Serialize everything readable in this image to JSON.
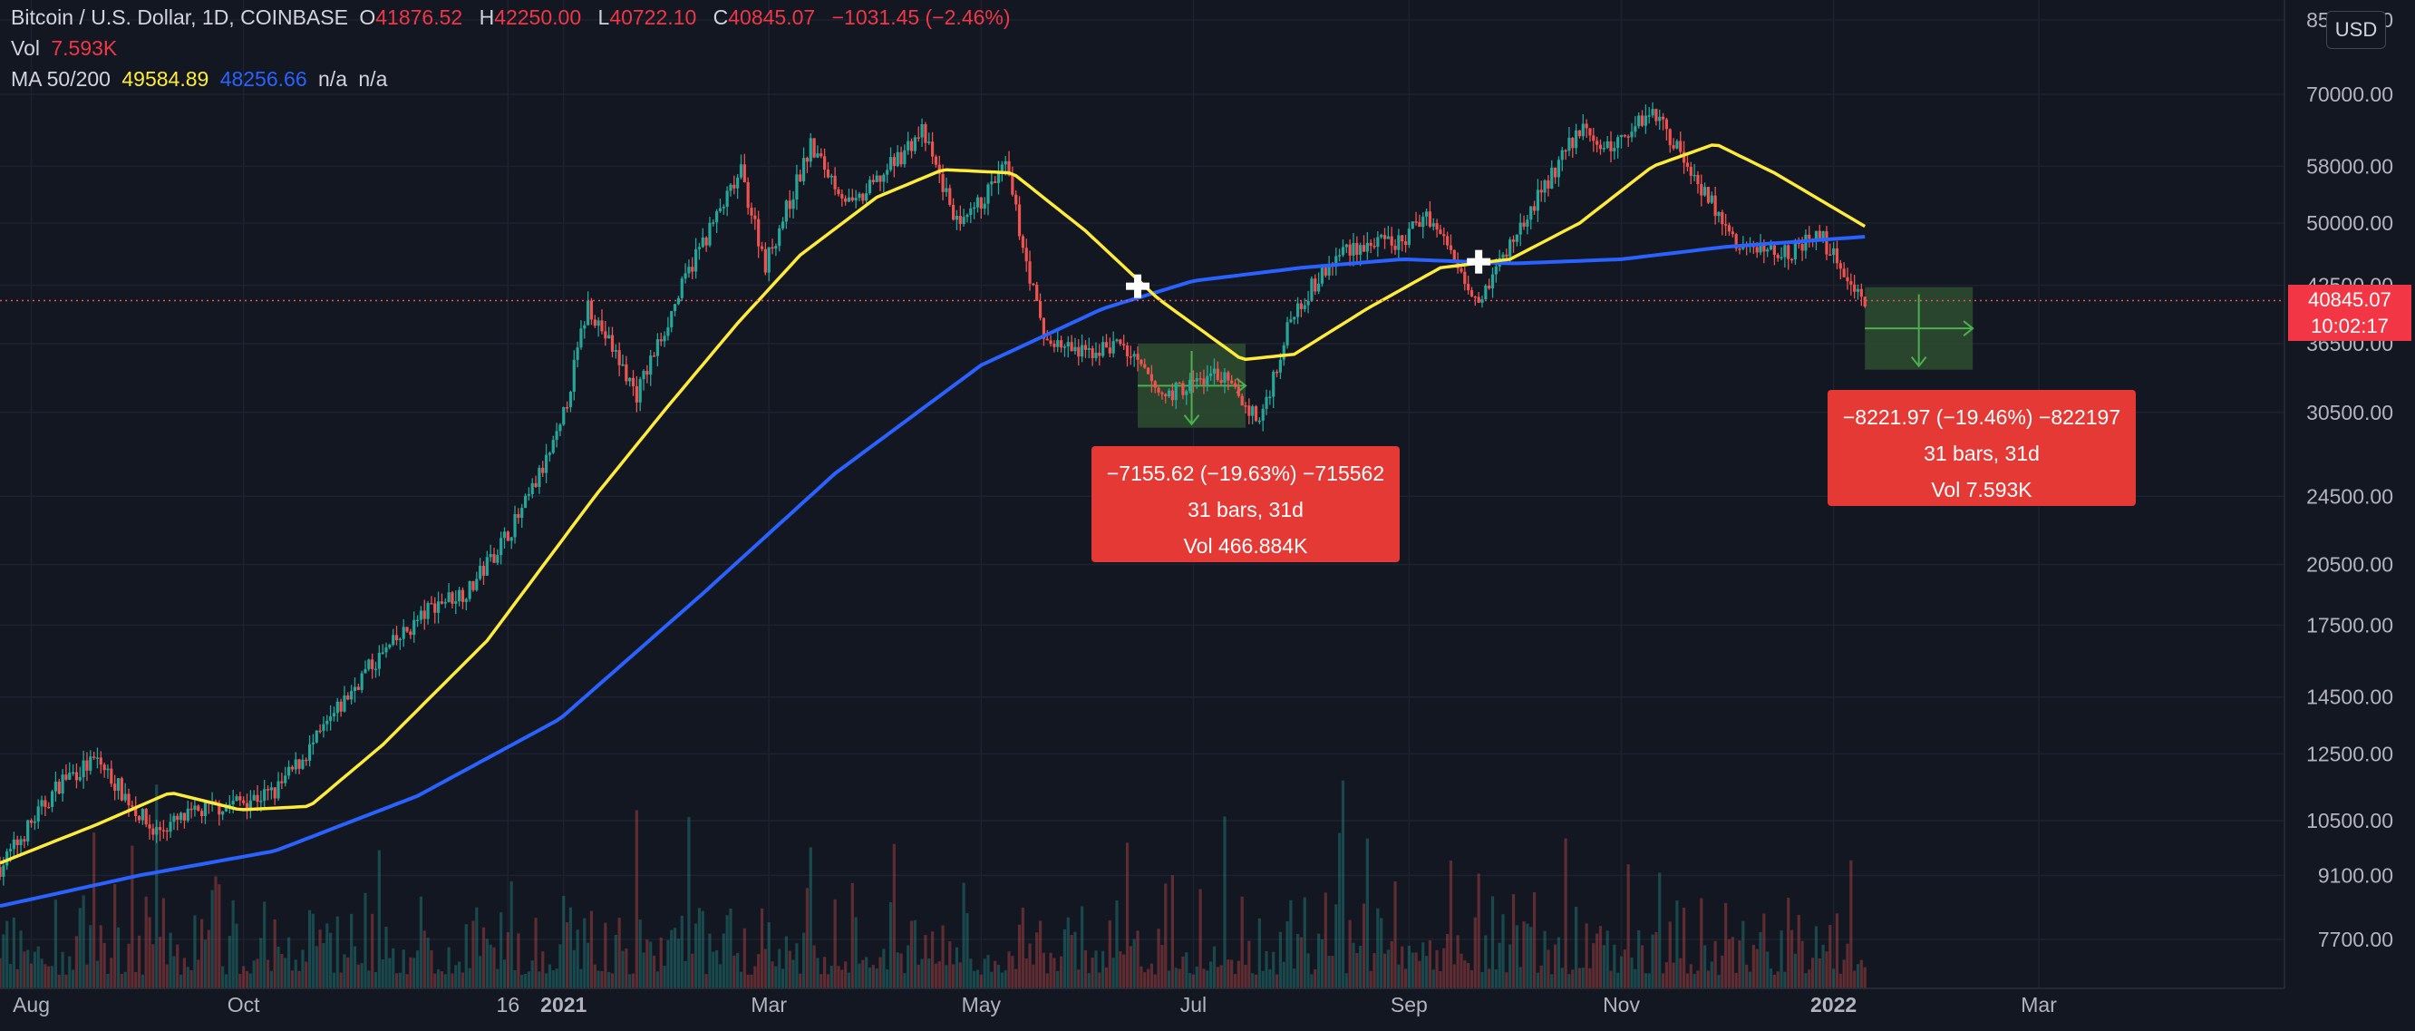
{
  "legend": {
    "title": "Bitcoin / U.S. Dollar, 1D, COINBASE",
    "open_key": "O",
    "open": "41876.52",
    "high_key": "H",
    "high": "42250.00",
    "low_key": "L",
    "low": "40722.10",
    "close_key": "C",
    "close": "40845.07",
    "change": "−1031.45 (−2.46%)",
    "vol_label": "Vol",
    "vol": "7.593K",
    "ma_label": "MA 50/200",
    "ma50": "49584.89",
    "ma200": "48256.66",
    "na1": "n/a",
    "na2": "n/a"
  },
  "currency_button": "USD",
  "last_price": {
    "price": "40845.07",
    "countdown": "10:02:17"
  },
  "measure_1": {
    "line1": "−7155.62 (−19.63%) −715562",
    "line2": "31 bars, 31d",
    "line3": "Vol 466.884K"
  },
  "measure_2": {
    "line1": "−8221.97 (−19.46%) −822197",
    "line2": "31 bars, 31d",
    "line3": "Vol 7.593K"
  },
  "colors": {
    "background": "#131722",
    "up": "#26a69a",
    "down": "#ef5350",
    "ma50": "#ffeb3b",
    "ma200": "#2962ff",
    "measure_box": "#e53935",
    "measure_fill": "#2e4d2f"
  },
  "chart_data": {
    "type": "candlestick",
    "title": "Bitcoin / U.S. Dollar, 1D, COINBASE",
    "x_ticks": [
      "Aug",
      "Oct",
      "16",
      "2021",
      "Mar",
      "May",
      "Jul",
      "Sep",
      "Nov",
      "2022",
      "Mar"
    ],
    "y_ticks": [
      "85000.00",
      "70000.00",
      "58000.00",
      "50000.00",
      "42500.00",
      "36500.00",
      "30500.00",
      "24500.00",
      "20500.00",
      "17500.00",
      "14500.00",
      "12500.00",
      "10500.00",
      "9100.00",
      "7700.00"
    ],
    "y_scale": "log",
    "y_range": [
      6500,
      86000
    ],
    "x_range": [
      "2020-07-23",
      "2022-03-20"
    ],
    "close_trend": [
      [
        "2020-07-23",
        9300
      ],
      [
        "2020-08-10",
        11700
      ],
      [
        "2020-08-20",
        12300
      ],
      [
        "2020-09-05",
        10200
      ],
      [
        "2020-09-20",
        10800
      ],
      [
        "2020-10-10",
        11300
      ],
      [
        "2020-10-21",
        12800
      ],
      [
        "2020-11-05",
        15500
      ],
      [
        "2020-11-25",
        18500
      ],
      [
        "2020-12-05",
        19200
      ],
      [
        "2020-12-20",
        23500
      ],
      [
        "2020-12-31",
        29000
      ],
      [
        "2021-01-08",
        40500
      ],
      [
        "2021-01-22",
        32000
      ],
      [
        "2021-02-08",
        46000
      ],
      [
        "2021-02-21",
        57000
      ],
      [
        "2021-02-28",
        45000
      ],
      [
        "2021-03-13",
        61000
      ],
      [
        "2021-03-25",
        52000
      ],
      [
        "2021-04-14",
        63500
      ],
      [
        "2021-04-25",
        49000
      ],
      [
        "2021-05-08",
        58000
      ],
      [
        "2021-05-19",
        37000
      ],
      [
        "2021-05-30",
        35500
      ],
      [
        "2021-06-10",
        36500
      ],
      [
        "2021-06-22",
        31800
      ],
      [
        "2021-07-08",
        33800
      ],
      [
        "2021-07-20",
        29800
      ],
      [
        "2021-07-30",
        40000
      ],
      [
        "2021-08-14",
        47000
      ],
      [
        "2021-08-30",
        47500
      ],
      [
        "2021-09-06",
        51500
      ],
      [
        "2021-09-21",
        41000
      ],
      [
        "2021-10-01",
        48000
      ],
      [
        "2021-10-20",
        64000
      ],
      [
        "2021-10-28",
        60500
      ],
      [
        "2021-11-10",
        67500
      ],
      [
        "2021-11-26",
        53500
      ],
      [
        "2021-12-04",
        47000
      ],
      [
        "2021-12-20",
        46500
      ],
      [
        "2021-12-28",
        48500
      ],
      [
        "2022-01-05",
        43500
      ],
      [
        "2022-01-10",
        40845
      ]
    ],
    "ma50": [
      [
        "2020-07-23",
        9400
      ],
      [
        "2020-08-20",
        10400
      ],
      [
        "2020-09-10",
        11300
      ],
      [
        "2020-09-30",
        10800
      ],
      [
        "2020-10-20",
        10900
      ],
      [
        "2020-11-10",
        12800
      ],
      [
        "2020-12-10",
        16800
      ],
      [
        "2021-01-10",
        24500
      ],
      [
        "2021-01-31",
        31000
      ],
      [
        "2021-02-20",
        38500
      ],
      [
        "2021-03-10",
        46000
      ],
      [
        "2021-04-01",
        53500
      ],
      [
        "2021-04-20",
        57500
      ],
      [
        "2021-05-10",
        57000
      ],
      [
        "2021-05-31",
        49000
      ],
      [
        "2021-06-21",
        41000
      ],
      [
        "2021-07-15",
        35000
      ],
      [
        "2021-07-30",
        35500
      ],
      [
        "2021-08-20",
        40000
      ],
      [
        "2021-09-10",
        44500
      ],
      [
        "2021-09-30",
        45500
      ],
      [
        "2021-10-20",
        50000
      ],
      [
        "2021-11-10",
        58000
      ],
      [
        "2021-11-28",
        61500
      ],
      [
        "2021-12-15",
        57000
      ],
      [
        "2022-01-10",
        49585
      ]
    ],
    "ma200": [
      [
        "2020-07-23",
        8400
      ],
      [
        "2020-09-01",
        9100
      ],
      [
        "2020-10-10",
        9700
      ],
      [
        "2020-11-20",
        11200
      ],
      [
        "2020-12-31",
        13700
      ],
      [
        "2021-02-10",
        19000
      ],
      [
        "2021-03-20",
        26000
      ],
      [
        "2021-05-01",
        34500
      ],
      [
        "2021-06-05",
        40000
      ],
      [
        "2021-07-01",
        43000
      ],
      [
        "2021-08-01",
        44500
      ],
      [
        "2021-08-30",
        45500
      ],
      [
        "2021-10-01",
        45000
      ],
      [
        "2021-11-01",
        45500
      ],
      [
        "2021-12-01",
        47000
      ],
      [
        "2022-01-10",
        48257
      ]
    ],
    "current_price": 40845.07,
    "measures": [
      {
        "from": [
          "2021-06-15",
          36500
        ],
        "to": [
          "2021-07-16",
          29300
        ],
        "change": -7155.62,
        "percent": -19.63,
        "bars": 31
      },
      {
        "from": [
          "2022-01-10",
          42300
        ],
        "to": [
          "2022-02-10",
          34100
        ],
        "change": -8221.97,
        "percent": -19.46,
        "bars": 31
      }
    ]
  }
}
